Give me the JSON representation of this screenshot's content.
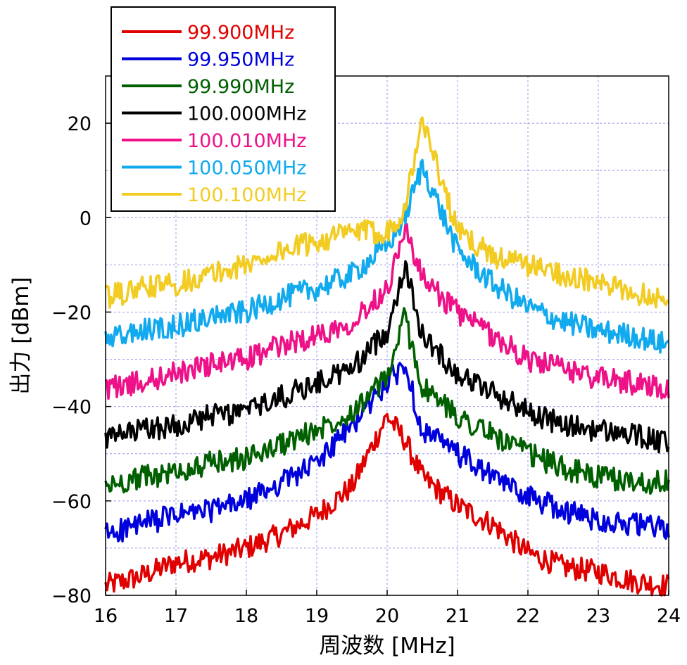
{
  "chart_data": {
    "type": "line",
    "xlabel": "周波数 [MHz]",
    "ylabel": "出力 [dBm]",
    "xlim": [
      16,
      24
    ],
    "ylim": [
      -80,
      30
    ],
    "x_ticks": [
      16,
      17,
      18,
      19,
      20,
      21,
      22,
      23,
      24
    ],
    "x_tick_labels": [
      "16",
      "17",
      "18",
      "19",
      "20",
      "21",
      "22",
      "23",
      "24"
    ],
    "y_ticks": [
      -80,
      -60,
      -40,
      -20,
      0,
      20
    ],
    "y_tick_labels": [
      "−80",
      "−60",
      "−40",
      "−20",
      "0",
      "20"
    ],
    "grid": true,
    "grid_color": "#9999ee",
    "legend_position": "top-left",
    "x": [
      16.0,
      16.5,
      17.0,
      17.5,
      18.0,
      18.5,
      19.0,
      19.5,
      20.0,
      20.25,
      20.5,
      21.0,
      21.5,
      22.0,
      22.5,
      23.0,
      23.5,
      24.0
    ],
    "series": [
      {
        "name": "99.900MHz",
        "color": "#e00000",
        "y": [
          -78,
          -76,
          -73,
          -72,
          -70,
          -67,
          -63,
          -57,
          -42,
          -47,
          -55,
          -61,
          -65,
          -71,
          -74,
          -75,
          -77,
          -78
        ]
      },
      {
        "name": "99.950MHz",
        "color": "#0000dd",
        "y": [
          -67,
          -65,
          -63,
          -62,
          -60,
          -56,
          -52,
          -44,
          -35,
          -31,
          -45,
          -50,
          -55,
          -59,
          -62,
          -64,
          -65,
          -66
        ]
      },
      {
        "name": "99.990MHz",
        "color": "#006000",
        "y": [
          -57,
          -55,
          -54,
          -52,
          -51,
          -48,
          -45,
          -41,
          -34,
          -21,
          -36,
          -42,
          -46,
          -50,
          -53,
          -55,
          -56,
          -56
        ]
      },
      {
        "name": "100.000MHz",
        "color": "#000000",
        "y": [
          -47,
          -45,
          -44,
          -42,
          -41,
          -38,
          -35,
          -32,
          -24,
          -10,
          -25,
          -33,
          -37,
          -41,
          -44,
          -45,
          -46,
          -48
        ]
      },
      {
        "name": "100.010MHz",
        "color": "#ee1188",
        "y": [
          -36,
          -35,
          -33,
          -31,
          -30,
          -27,
          -25,
          -22,
          -15,
          -2,
          -13,
          -20,
          -25,
          -30,
          -32,
          -34,
          -35,
          -36
        ]
      },
      {
        "name": "100.050MHz",
        "color": "#11aaee",
        "y": [
          -26,
          -24,
          -23,
          -21,
          -20,
          -17,
          -15,
          -12,
          -6,
          0,
          11,
          -7,
          -14,
          -19,
          -22,
          -24,
          -25,
          -27
        ]
      },
      {
        "name": "100.100MHz",
        "color": "#f2cc22",
        "y": [
          -17,
          -15,
          -14,
          -12,
          -10,
          -7,
          -5,
          -3,
          -3,
          2,
          21,
          -3,
          -8,
          -10,
          -12,
          -14,
          -16,
          -17
        ]
      }
    ]
  }
}
